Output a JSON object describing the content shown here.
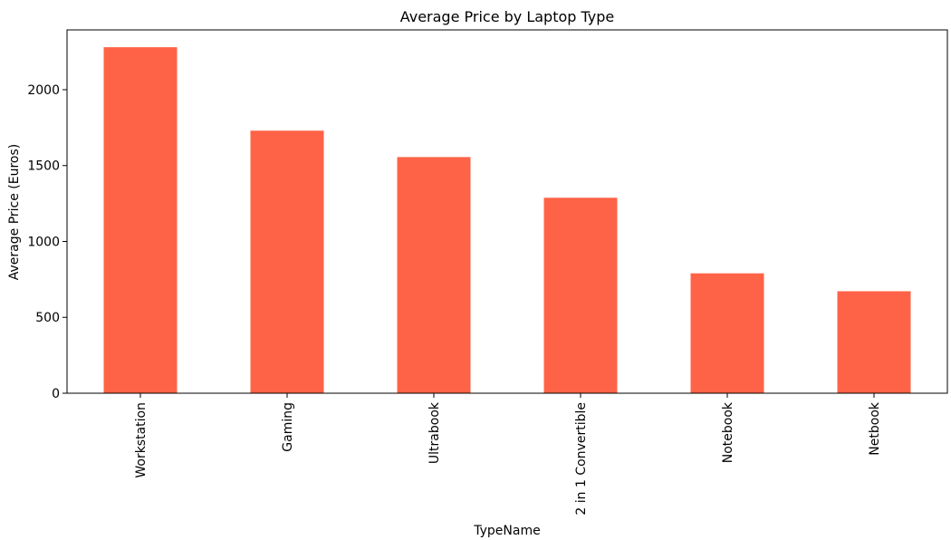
{
  "chart_data": {
    "type": "bar",
    "title": "Average Price by Laptop Type",
    "xlabel": "TypeName",
    "ylabel": "Average Price (Euros)",
    "categories": [
      "Workstation",
      "Gaming",
      "Ultrabook",
      "2 in 1 Convertible",
      "Notebook",
      "Netbook"
    ],
    "values": [
      2280,
      1730,
      1556,
      1288,
      790,
      672
    ],
    "ylim": [
      0,
      2394
    ],
    "yticks": [
      0,
      500,
      1000,
      1500,
      2000
    ],
    "bar_color": "#ff6347",
    "grid": false,
    "legend": false
  }
}
